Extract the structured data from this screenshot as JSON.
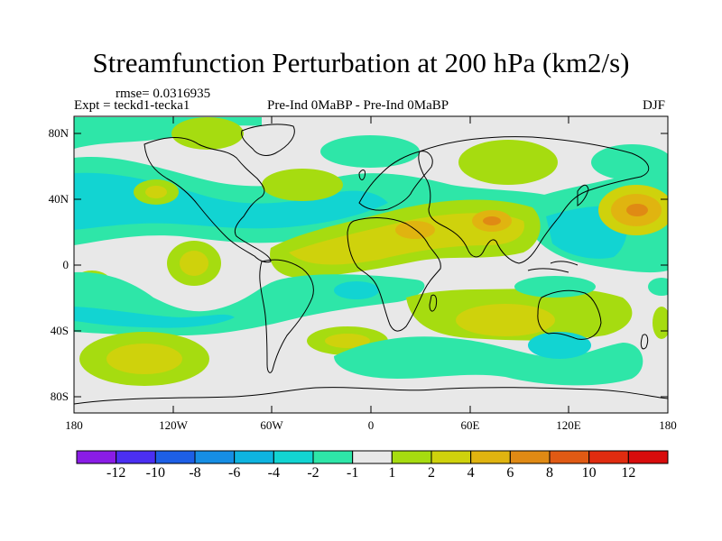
{
  "title": "Streamfunction Perturbation at 200 hPa (km2/s)",
  "rmse_label": "rmse= 0.0316935",
  "expt_label": "Expt = teckd1-tecka1",
  "period_label": "Pre-Ind 0MaBP - Pre-Ind 0MaBP",
  "season_label": "DJF",
  "lat_labels": [
    "80N",
    "40N",
    "0",
    "40S",
    "80S"
  ],
  "lon_labels": [
    "180",
    "120W",
    "60W",
    "0",
    "60E",
    "120E",
    "180"
  ],
  "colorbar": {
    "labels": [
      "-12",
      "-10",
      "-8",
      "-6",
      "-4",
      "-2",
      "-1",
      "1",
      "2",
      "4",
      "6",
      "8",
      "10",
      "12"
    ],
    "colors": [
      "#8a1ce6",
      "#4b2ff2",
      "#1d5fe6",
      "#168ee4",
      "#0eb4e0",
      "#12d4d2",
      "#2ee6a8",
      "#e8e8e8",
      "#a6dc10",
      "#cfd20c",
      "#e0b410",
      "#e08a14",
      "#e05a14",
      "#e02c10",
      "#d80c0c"
    ]
  },
  "colors": {
    "background": "#e8e8e8",
    "coast": "#000000"
  }
}
